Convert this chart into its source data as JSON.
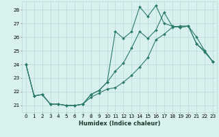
{
  "xlabel": "Humidex (Indice chaleur)",
  "x": [
    0,
    1,
    2,
    3,
    4,
    5,
    6,
    7,
    8,
    9,
    10,
    11,
    12,
    13,
    14,
    15,
    16,
    17,
    18,
    19,
    20,
    21,
    22,
    23
  ],
  "line1": [
    24.0,
    21.7,
    21.8,
    21.1,
    21.1,
    21.0,
    21.0,
    21.1,
    21.6,
    21.9,
    22.2,
    22.3,
    22.7,
    23.2,
    23.8,
    24.5,
    25.8,
    26.2,
    26.7,
    26.8,
    26.8,
    26.0,
    25.0,
    24.2
  ],
  "line2": [
    24.0,
    21.7,
    21.8,
    21.1,
    21.1,
    21.0,
    21.0,
    21.1,
    21.8,
    22.1,
    22.7,
    23.5,
    24.1,
    25.2,
    26.4,
    25.9,
    26.5,
    27.8,
    26.8,
    26.7,
    26.8,
    25.5,
    25.0,
    24.2
  ],
  "line3": [
    24.0,
    21.7,
    21.8,
    21.1,
    21.1,
    21.0,
    21.0,
    21.1,
    21.8,
    22.1,
    22.7,
    26.4,
    25.9,
    26.4,
    28.2,
    27.5,
    28.3,
    27.0,
    26.8,
    26.7,
    26.8,
    25.5,
    24.9,
    24.2
  ],
  "color": "#2a7a6a",
  "bg_color": "#d8f0ee",
  "grid_color": "#b8d8d5",
  "ylim_min": 20.5,
  "ylim_max": 28.6,
  "yticks": [
    21,
    22,
    23,
    24,
    25,
    26,
    27,
    28
  ],
  "xticks": [
    0,
    1,
    2,
    3,
    4,
    5,
    6,
    7,
    8,
    9,
    10,
    11,
    12,
    13,
    14,
    15,
    16,
    17,
    18,
    19,
    20,
    21,
    22,
    23
  ],
  "xlabel_fontsize": 6.0,
  "tick_fontsize": 5.2,
  "linewidth": 0.8,
  "markersize": 2.0
}
